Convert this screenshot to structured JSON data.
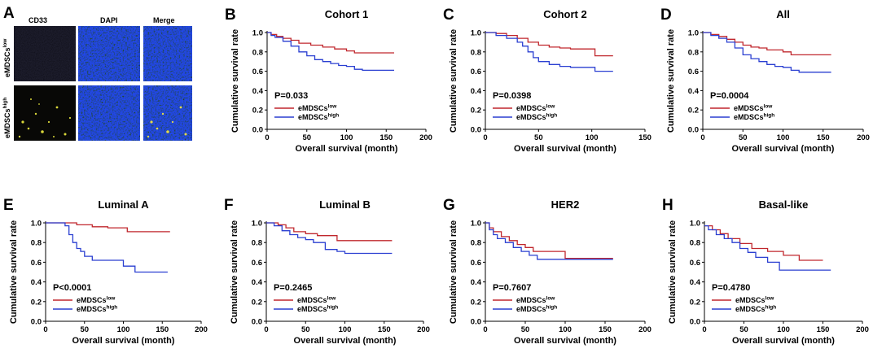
{
  "figure": {
    "panel_a": {
      "label": "A",
      "columns": [
        "CD33",
        "DAPI",
        "Merge"
      ],
      "row_labels": [
        {
          "base": "eMDSCs",
          "sup": "low"
        },
        {
          "base": "eMDSCs",
          "sup": "high"
        }
      ]
    }
  },
  "chart_data": [
    {
      "panel": "B",
      "type": "line",
      "title": "Cohort 1",
      "xlabel": "Overall survival (month)",
      "ylabel": "Cumulative survival rate",
      "xlim": [
        0,
        200
      ],
      "xticks": [
        0,
        50,
        100,
        150,
        200
      ],
      "ylim": [
        0,
        1.0
      ],
      "yticks": [
        0.0,
        0.2,
        0.4,
        0.6,
        0.8,
        1.0
      ],
      "pvalue": "P=0.033",
      "series": [
        {
          "name": "eMDSCs",
          "sup": "low",
          "color": "#c0272d",
          "x": [
            0,
            5,
            12,
            20,
            30,
            40,
            55,
            70,
            85,
            100,
            110,
            160
          ],
          "y": [
            1.0,
            0.98,
            0.96,
            0.94,
            0.92,
            0.89,
            0.87,
            0.85,
            0.83,
            0.81,
            0.79,
            0.79
          ]
        },
        {
          "name": "eMDSCs",
          "sup": "high",
          "color": "#2a3fd1",
          "x": [
            0,
            5,
            10,
            20,
            30,
            40,
            50,
            60,
            70,
            80,
            90,
            100,
            110,
            120,
            160
          ],
          "y": [
            1.0,
            0.97,
            0.95,
            0.91,
            0.86,
            0.8,
            0.76,
            0.72,
            0.7,
            0.68,
            0.66,
            0.65,
            0.62,
            0.61,
            0.61
          ]
        }
      ]
    },
    {
      "panel": "C",
      "type": "line",
      "title": "Cohort 2",
      "xlabel": "Overall survival (month)",
      "ylabel": "Cumulative survival rate",
      "xlim": [
        0,
        150
      ],
      "xticks": [
        0,
        50,
        100,
        150
      ],
      "ylim": [
        0,
        1.0
      ],
      "yticks": [
        0.0,
        0.2,
        0.4,
        0.6,
        0.8,
        1.0
      ],
      "pvalue": "P=0.0398",
      "series": [
        {
          "name": "eMDSCs",
          "sup": "low",
          "color": "#c0272d",
          "x": [
            0,
            10,
            20,
            30,
            40,
            50,
            60,
            70,
            80,
            100,
            103,
            120
          ],
          "y": [
            1.0,
            0.99,
            0.97,
            0.94,
            0.9,
            0.87,
            0.85,
            0.84,
            0.83,
            0.83,
            0.76,
            0.76
          ]
        },
        {
          "name": "eMDSCs",
          "sup": "high",
          "color": "#2a3fd1",
          "x": [
            0,
            10,
            20,
            30,
            35,
            40,
            45,
            50,
            60,
            70,
            80,
            100,
            103,
            120
          ],
          "y": [
            1.0,
            0.97,
            0.94,
            0.9,
            0.86,
            0.8,
            0.74,
            0.7,
            0.67,
            0.65,
            0.64,
            0.64,
            0.6,
            0.6
          ]
        }
      ]
    },
    {
      "panel": "D",
      "type": "line",
      "title": "All",
      "xlabel": "Overall survival (month)",
      "ylabel": "Cumulative survival rate",
      "xlim": [
        0,
        200
      ],
      "xticks": [
        0,
        50,
        100,
        150,
        200
      ],
      "ylim": [
        0,
        1.0
      ],
      "yticks": [
        0.0,
        0.2,
        0.4,
        0.6,
        0.8,
        1.0
      ],
      "pvalue": "P=0.0004",
      "series": [
        {
          "name": "eMDSCs",
          "sup": "low",
          "color": "#c0272d",
          "x": [
            0,
            10,
            20,
            30,
            40,
            50,
            60,
            70,
            80,
            100,
            110,
            160
          ],
          "y": [
            1.0,
            0.98,
            0.96,
            0.93,
            0.9,
            0.87,
            0.85,
            0.84,
            0.82,
            0.8,
            0.77,
            0.77
          ]
        },
        {
          "name": "eMDSCs",
          "sup": "high",
          "color": "#2a3fd1",
          "x": [
            0,
            10,
            20,
            30,
            40,
            50,
            60,
            70,
            80,
            90,
            100,
            110,
            120,
            160
          ],
          "y": [
            1.0,
            0.97,
            0.94,
            0.9,
            0.84,
            0.77,
            0.73,
            0.7,
            0.67,
            0.65,
            0.64,
            0.61,
            0.59,
            0.59
          ]
        }
      ]
    },
    {
      "panel": "E",
      "type": "line",
      "title": "Luminal A",
      "xlabel": "Overall survival (month)",
      "ylabel": "Cumulative survival rate",
      "xlim": [
        0,
        200
      ],
      "xticks": [
        0,
        50,
        100,
        150,
        200
      ],
      "ylim": [
        0,
        1.0
      ],
      "yticks": [
        0.0,
        0.2,
        0.4,
        0.6,
        0.8,
        1.0
      ],
      "pvalue": "P<0.0001",
      "series": [
        {
          "name": "eMDSCs",
          "sup": "low",
          "color": "#c0272d",
          "x": [
            0,
            25,
            40,
            60,
            80,
            100,
            105,
            160
          ],
          "y": [
            1.0,
            1.0,
            0.98,
            0.96,
            0.95,
            0.95,
            0.91,
            0.91
          ]
        },
        {
          "name": "eMDSCs",
          "sup": "high",
          "color": "#2a3fd1",
          "x": [
            0,
            25,
            30,
            35,
            40,
            45,
            50,
            60,
            70,
            100,
            115,
            157
          ],
          "y": [
            1.0,
            0.97,
            0.88,
            0.8,
            0.74,
            0.71,
            0.66,
            0.62,
            0.62,
            0.56,
            0.5,
            0.5
          ]
        }
      ]
    },
    {
      "panel": "F",
      "type": "line",
      "title": "Luminal B",
      "xlabel": "Overall survival (month)",
      "ylabel": "Cumulative survival rate",
      "xlim": [
        0,
        200
      ],
      "xticks": [
        0,
        50,
        100,
        150,
        200
      ],
      "ylim": [
        0,
        1.0
      ],
      "yticks": [
        0.0,
        0.2,
        0.4,
        0.6,
        0.8,
        1.0
      ],
      "pvalue": "P=0.2465",
      "series": [
        {
          "name": "eMDSCs",
          "sup": "low",
          "color": "#c0272d",
          "x": [
            0,
            15,
            25,
            35,
            50,
            65,
            90,
            160
          ],
          "y": [
            1.0,
            0.98,
            0.95,
            0.91,
            0.89,
            0.87,
            0.82,
            0.82
          ]
        },
        {
          "name": "eMDSCs",
          "sup": "high",
          "color": "#2a3fd1",
          "x": [
            0,
            10,
            20,
            30,
            40,
            50,
            60,
            75,
            90,
            100,
            160
          ],
          "y": [
            1.0,
            0.97,
            0.92,
            0.88,
            0.85,
            0.83,
            0.8,
            0.73,
            0.71,
            0.69,
            0.69
          ]
        }
      ]
    },
    {
      "panel": "G",
      "type": "line",
      "title": "HER2",
      "xlabel": "Overall survival (month)",
      "ylabel": "Cumulative survival rate",
      "xlim": [
        0,
        200
      ],
      "xticks": [
        0,
        50,
        100,
        150,
        200
      ],
      "ylim": [
        0,
        1.0
      ],
      "yticks": [
        0.0,
        0.2,
        0.4,
        0.6,
        0.8,
        1.0
      ],
      "pvalue": "P=0.7607",
      "series": [
        {
          "name": "eMDSCs",
          "sup": "low",
          "color": "#c0272d",
          "x": [
            0,
            5,
            10,
            20,
            30,
            40,
            50,
            60,
            100,
            160
          ],
          "y": [
            1.0,
            0.95,
            0.91,
            0.86,
            0.82,
            0.78,
            0.75,
            0.71,
            0.64,
            0.64
          ]
        },
        {
          "name": "eMDSCs",
          "sup": "high",
          "color": "#2a3fd1",
          "x": [
            0,
            5,
            10,
            15,
            25,
            35,
            45,
            55,
            65,
            160
          ],
          "y": [
            1.0,
            0.93,
            0.88,
            0.84,
            0.8,
            0.75,
            0.71,
            0.67,
            0.63,
            0.63
          ]
        }
      ]
    },
    {
      "panel": "H",
      "type": "line",
      "title": "Basal-like",
      "xlabel": "Overall survival (month)",
      "ylabel": "Cumulative survival rate",
      "xlim": [
        0,
        200
      ],
      "xticks": [
        0,
        50,
        100,
        150,
        200
      ],
      "ylim": [
        0,
        1.0
      ],
      "yticks": [
        0.0,
        0.2,
        0.4,
        0.6,
        0.8,
        1.0
      ],
      "pvalue": "P=0.4780",
      "series": [
        {
          "name": "eMDSCs",
          "sup": "low",
          "color": "#c0272d",
          "x": [
            0,
            10,
            20,
            30,
            45,
            60,
            80,
            100,
            120,
            150
          ],
          "y": [
            0.97,
            0.93,
            0.89,
            0.84,
            0.79,
            0.74,
            0.71,
            0.67,
            0.62,
            0.62
          ]
        },
        {
          "name": "eMDSCs",
          "sup": "high",
          "color": "#2a3fd1",
          "x": [
            0,
            5,
            15,
            25,
            35,
            45,
            55,
            65,
            80,
            95,
            160
          ],
          "y": [
            0.97,
            0.93,
            0.88,
            0.84,
            0.8,
            0.74,
            0.7,
            0.65,
            0.6,
            0.52,
            0.52
          ]
        }
      ]
    }
  ]
}
